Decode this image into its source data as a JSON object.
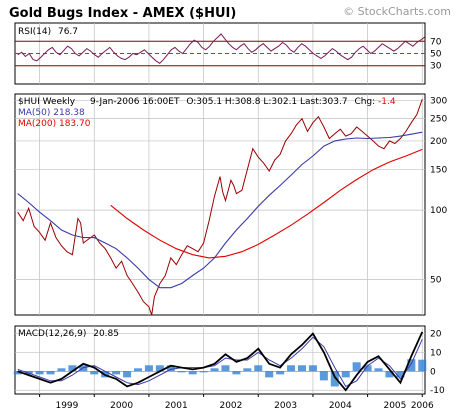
{
  "header": {
    "title": "Gold Bugs Index - AMEX ($HUI)",
    "watermark": "© StockCharts.com"
  },
  "colors": {
    "price": "#9b0000",
    "ma50": "#3a3aa8",
    "ma200": "#e00000",
    "grid": "#c0c0c0",
    "axis": "#000000",
    "rsi_shade": "#e0a080",
    "macd_hist": "#2f7fd4",
    "macd_line": "#000000",
    "macd_signal": "#3a3aa8",
    "neg_value": "#ff0000"
  },
  "chart_data": [
    {
      "type": "line",
      "name": "rsi_panel",
      "label_prefix": "RSI(14)",
      "label_value": "76.7",
      "ylim": [
        0,
        100
      ],
      "y_ticks": [
        "70",
        "50",
        "30"
      ],
      "y_tick_values": [
        70,
        50,
        30
      ],
      "grid": true,
      "series": [
        {
          "values": [
            48,
            52,
            45,
            50,
            40,
            38,
            44,
            50,
            56,
            60,
            52,
            48,
            55,
            62,
            58,
            50,
            46,
            52,
            58,
            54,
            48,
            44,
            50,
            55,
            60,
            52,
            46,
            42,
            40,
            44,
            50,
            48,
            52,
            56,
            50,
            44,
            38,
            34,
            40,
            48,
            56,
            60,
            54,
            50,
            58,
            66,
            72,
            68,
            60,
            56,
            62,
            70,
            76,
            82,
            74,
            66,
            60,
            56,
            62,
            66,
            58,
            52,
            56,
            62,
            66,
            60,
            54,
            58,
            62,
            68,
            64,
            56,
            52,
            60,
            66,
            62,
            56,
            50,
            46,
            42,
            46,
            52,
            58,
            54,
            48,
            44,
            40,
            44,
            52,
            58,
            62,
            56,
            50,
            54,
            60,
            66,
            62,
            58,
            54,
            58,
            64,
            70,
            66,
            62,
            68,
            72,
            76.7
          ]
        }
      ]
    },
    {
      "type": "line",
      "name": "price_panel",
      "legend": {
        "symbol": "$HUI Weekly",
        "date": "9-Jan-2006 16:00ET",
        "ohlc": "O:305.1 H:308.8 L:302.1 Last:303.7",
        "chg_label": "Chg:",
        "chg_value": "-1.4",
        "ma50_label": "MA(50) 218.38",
        "ma200_label": "MA(200) 183.70"
      },
      "y_scale": "log",
      "ylim": [
        35,
        320
      ],
      "y_ticks": [
        "300",
        "250",
        "200",
        "150",
        "100",
        "50"
      ],
      "y_tick_values": [
        300,
        250,
        200,
        150,
        100,
        50
      ],
      "x_ticks": [
        "1999",
        "2000",
        "2001",
        "2002",
        "2003",
        "2004",
        "2005",
        "2006"
      ],
      "x_tick_values": [
        1999,
        2000,
        2001,
        2002,
        2003,
        2004,
        2005,
        2006
      ],
      "xlim": [
        1998.55,
        2006.05
      ],
      "grid": true,
      "series": [
        {
          "key": "price",
          "x": [
            1998.6,
            1998.7,
            1998.8,
            1998.9,
            1999.0,
            1999.1,
            1999.2,
            1999.3,
            1999.4,
            1999.5,
            1999.6,
            1999.7,
            1999.75,
            1999.8,
            1999.9,
            2000.0,
            2000.1,
            2000.2,
            2000.3,
            2000.4,
            2000.5,
            2000.6,
            2000.7,
            2000.8,
            2000.9,
            2001.0,
            2001.05,
            2001.1,
            2001.2,
            2001.3,
            2001.4,
            2001.5,
            2001.6,
            2001.7,
            2001.8,
            2001.9,
            2002.0,
            2002.1,
            2002.2,
            2002.3,
            2002.35,
            2002.4,
            2002.5,
            2002.55,
            2002.6,
            2002.7,
            2002.8,
            2002.9,
            2003.0,
            2003.1,
            2003.2,
            2003.3,
            2003.4,
            2003.5,
            2003.6,
            2003.7,
            2003.8,
            2003.9,
            2004.0,
            2004.1,
            2004.2,
            2004.3,
            2004.4,
            2004.5,
            2004.6,
            2004.7,
            2004.8,
            2004.9,
            2005.0,
            2005.1,
            2005.2,
            2005.3,
            2005.4,
            2005.5,
            2005.6,
            2005.7,
            2005.8,
            2005.9,
            2006.0
          ],
          "values": [
            98,
            90,
            102,
            85,
            80,
            74,
            88,
            76,
            70,
            66,
            64,
            92,
            88,
            72,
            75,
            78,
            72,
            68,
            62,
            56,
            60,
            52,
            48,
            44,
            40,
            38,
            35,
            42,
            48,
            52,
            62,
            58,
            64,
            70,
            68,
            66,
            72,
            90,
            115,
            140,
            120,
            110,
            135,
            128,
            118,
            122,
            150,
            185,
            170,
            160,
            148,
            165,
            175,
            200,
            215,
            235,
            250,
            220,
            240,
            255,
            230,
            205,
            215,
            225,
            210,
            215,
            230,
            220,
            210,
            200,
            190,
            185,
            200,
            195,
            205,
            220,
            240,
            260,
            303.7
          ]
        },
        {
          "key": "ma50",
          "x": [
            1998.6,
            1998.8,
            1999.0,
            1999.2,
            1999.4,
            1999.6,
            1999.8,
            2000.0,
            2000.2,
            2000.4,
            2000.6,
            2000.8,
            2001.0,
            2001.2,
            2001.4,
            2001.6,
            2001.8,
            2002.0,
            2002.2,
            2002.4,
            2002.6,
            2002.8,
            2003.0,
            2003.2,
            2003.4,
            2003.6,
            2003.8,
            2004.0,
            2004.2,
            2004.4,
            2004.6,
            2004.8,
            2005.0,
            2005.2,
            2005.4,
            2005.6,
            2005.8,
            2006.0
          ],
          "values": [
            118,
            108,
            98,
            90,
            82,
            78,
            76,
            76,
            72,
            68,
            62,
            56,
            50,
            46,
            46,
            48,
            52,
            56,
            62,
            72,
            82,
            92,
            104,
            116,
            128,
            142,
            158,
            172,
            190,
            200,
            204,
            206,
            205,
            206,
            207,
            210,
            214,
            218.38
          ]
        },
        {
          "key": "ma200",
          "x": [
            2000.3,
            2000.6,
            2000.9,
            2001.2,
            2001.5,
            2001.8,
            2002.1,
            2002.4,
            2002.7,
            2003.0,
            2003.3,
            2003.6,
            2003.9,
            2004.2,
            2004.5,
            2004.8,
            2005.1,
            2005.4,
            2005.7,
            2006.0
          ],
          "values": [
            105,
            92,
            82,
            74,
            68,
            64,
            62,
            63,
            66,
            71,
            78,
            86,
            96,
            108,
            122,
            136,
            150,
            162,
            172,
            183.7
          ]
        }
      ]
    },
    {
      "type": "line",
      "name": "macd_panel",
      "label_prefix": "MACD(12,26,9)",
      "label_value": "20.85",
      "ylim": [
        -12,
        24
      ],
      "y_ticks": [
        "20",
        "10",
        "0",
        "-10"
      ],
      "y_tick_values": [
        20,
        10,
        0,
        -10
      ],
      "grid": true,
      "series": [
        {
          "key": "macd",
          "x": [
            1998.6,
            1998.8,
            1999.0,
            1999.2,
            1999.4,
            1999.6,
            1999.8,
            2000.0,
            2000.2,
            2000.4,
            2000.6,
            2000.8,
            2001.0,
            2001.2,
            2001.4,
            2001.6,
            2001.8,
            2002.0,
            2002.2,
            2002.4,
            2002.6,
            2002.8,
            2003.0,
            2003.2,
            2003.4,
            2003.6,
            2003.8,
            2004.0,
            2004.2,
            2004.4,
            2004.6,
            2004.8,
            2005.0,
            2005.2,
            2005.4,
            2005.6,
            2005.8,
            2006.0
          ],
          "values": [
            0,
            -2,
            -4,
            -6,
            -4,
            0,
            4,
            2,
            -2,
            -4,
            -8,
            -6,
            -3,
            0,
            3,
            2,
            1,
            2,
            4,
            9,
            5,
            7,
            12,
            4,
            2,
            9,
            14,
            20,
            10,
            -3,
            -10,
            -2,
            5,
            8,
            1,
            -6,
            8,
            20.85
          ]
        },
        {
          "key": "signal",
          "x": [
            1998.6,
            1998.8,
            1999.0,
            1999.2,
            1999.4,
            1999.6,
            1999.8,
            2000.0,
            2000.2,
            2000.4,
            2000.6,
            2000.8,
            2001.0,
            2001.2,
            2001.4,
            2001.6,
            2001.8,
            2002.0,
            2002.2,
            2002.4,
            2002.6,
            2002.8,
            2003.0,
            2003.2,
            2003.4,
            2003.6,
            2003.8,
            2004.0,
            2004.2,
            2004.4,
            2004.6,
            2004.8,
            2005.0,
            2005.2,
            2005.4,
            2005.6,
            2005.8,
            2006.0
          ],
          "values": [
            1,
            -1,
            -3,
            -5,
            -5,
            -2,
            2,
            3,
            0,
            -3,
            -6,
            -7,
            -5,
            -2,
            1,
            2,
            2,
            2,
            3,
            7,
            6,
            6,
            10,
            6,
            3,
            7,
            12,
            18,
            13,
            2,
            -8,
            -5,
            3,
            7,
            3,
            -4,
            4,
            17
          ]
        }
      ]
    }
  ]
}
